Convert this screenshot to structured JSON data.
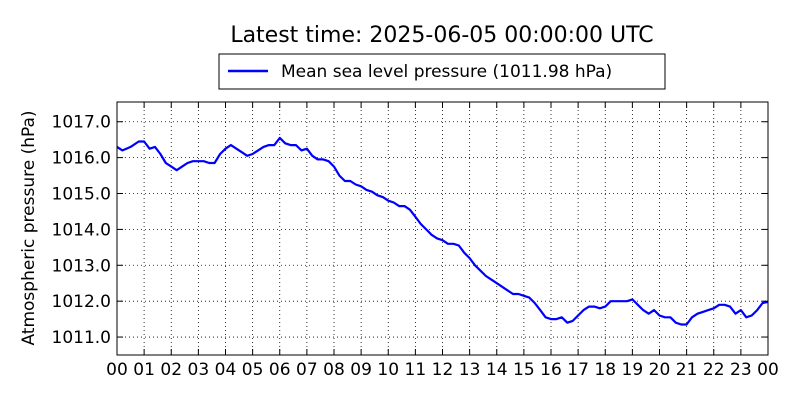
{
  "chart_data": {
    "type": "line",
    "title": "Latest time: 2025-06-05 00:00:00 UTC",
    "ylabel": "Atmospheric pressure (hPa)",
    "xlabel": "",
    "legend_position": "top-center",
    "grid": true,
    "xlim": [
      0,
      24
    ],
    "ylim": [
      1010.5,
      1017.55
    ],
    "x_tick_labels": [
      "00",
      "01",
      "02",
      "03",
      "04",
      "05",
      "06",
      "07",
      "08",
      "09",
      "10",
      "11",
      "12",
      "13",
      "14",
      "15",
      "16",
      "17",
      "18",
      "19",
      "20",
      "21",
      "22",
      "23",
      "00"
    ],
    "y_tick_values": [
      1011.0,
      1012.0,
      1013.0,
      1014.0,
      1015.0,
      1016.0,
      1017.0
    ],
    "y_tick_labels": [
      "1011.0",
      "1012.0",
      "1013.0",
      "1014.0",
      "1015.0",
      "1016.0",
      "1017.0"
    ],
    "series": [
      {
        "name": "Mean sea level pressure (1011.98 hPa)",
        "color": "#0000ff",
        "x": [
          0,
          0.2,
          0.5,
          0.8,
          1.0,
          1.2,
          1.4,
          1.6,
          1.8,
          2.0,
          2.2,
          2.4,
          2.6,
          2.8,
          3.0,
          3.2,
          3.4,
          3.6,
          3.8,
          4.0,
          4.2,
          4.4,
          4.6,
          4.8,
          5.0,
          5.2,
          5.4,
          5.6,
          5.8,
          6.0,
          6.2,
          6.4,
          6.6,
          6.8,
          7.0,
          7.2,
          7.4,
          7.6,
          7.8,
          8.0,
          8.2,
          8.4,
          8.6,
          8.8,
          9.0,
          9.2,
          9.4,
          9.6,
          9.8,
          10.0,
          10.2,
          10.4,
          10.6,
          10.8,
          11.0,
          11.2,
          11.4,
          11.6,
          11.8,
          12.0,
          12.2,
          12.4,
          12.6,
          12.8,
          13.0,
          13.2,
          13.4,
          13.6,
          13.8,
          14.0,
          14.2,
          14.4,
          14.6,
          14.8,
          15.0,
          15.2,
          15.4,
          15.6,
          15.8,
          16.0,
          16.2,
          16.4,
          16.6,
          16.8,
          17.0,
          17.2,
          17.4,
          17.6,
          17.8,
          18.0,
          18.2,
          18.4,
          18.6,
          18.8,
          19.0,
          19.2,
          19.4,
          19.6,
          19.8,
          20.0,
          20.2,
          20.4,
          20.6,
          20.8,
          21.0,
          21.2,
          21.4,
          21.6,
          21.8,
          22.0,
          22.2,
          22.4,
          22.6,
          22.8,
          23.0,
          23.2,
          23.4,
          23.6,
          23.8,
          24.0
        ],
        "y": [
          1016.3,
          1016.2,
          1016.3,
          1016.45,
          1016.45,
          1016.25,
          1016.3,
          1016.1,
          1015.85,
          1015.75,
          1015.65,
          1015.75,
          1015.85,
          1015.9,
          1015.9,
          1015.9,
          1015.85,
          1015.85,
          1016.1,
          1016.25,
          1016.35,
          1016.25,
          1016.15,
          1016.05,
          1016.1,
          1016.2,
          1016.3,
          1016.35,
          1016.35,
          1016.55,
          1016.4,
          1016.35,
          1016.35,
          1016.2,
          1016.25,
          1016.05,
          1015.95,
          1015.95,
          1015.9,
          1015.75,
          1015.5,
          1015.35,
          1015.35,
          1015.25,
          1015.2,
          1015.1,
          1015.05,
          1014.95,
          1014.9,
          1014.8,
          1014.75,
          1014.65,
          1014.65,
          1014.55,
          1014.35,
          1014.15,
          1014.0,
          1013.85,
          1013.75,
          1013.7,
          1013.6,
          1013.6,
          1013.55,
          1013.35,
          1013.2,
          1013.0,
          1012.85,
          1012.7,
          1012.6,
          1012.5,
          1012.4,
          1012.3,
          1012.2,
          1012.2,
          1012.15,
          1012.1,
          1011.95,
          1011.75,
          1011.55,
          1011.5,
          1011.5,
          1011.55,
          1011.4,
          1011.45,
          1011.6,
          1011.75,
          1011.85,
          1011.85,
          1011.8,
          1011.85,
          1012.0,
          1012.0,
          1012.0,
          1012.0,
          1012.05,
          1011.9,
          1011.75,
          1011.65,
          1011.75,
          1011.6,
          1011.55,
          1011.55,
          1011.4,
          1011.35,
          1011.35,
          1011.55,
          1011.65,
          1011.7,
          1011.75,
          1011.8,
          1011.9,
          1011.9,
          1011.85,
          1011.65,
          1011.75,
          1011.55,
          1011.6,
          1011.75,
          1011.95,
          1011.98
        ]
      }
    ]
  }
}
